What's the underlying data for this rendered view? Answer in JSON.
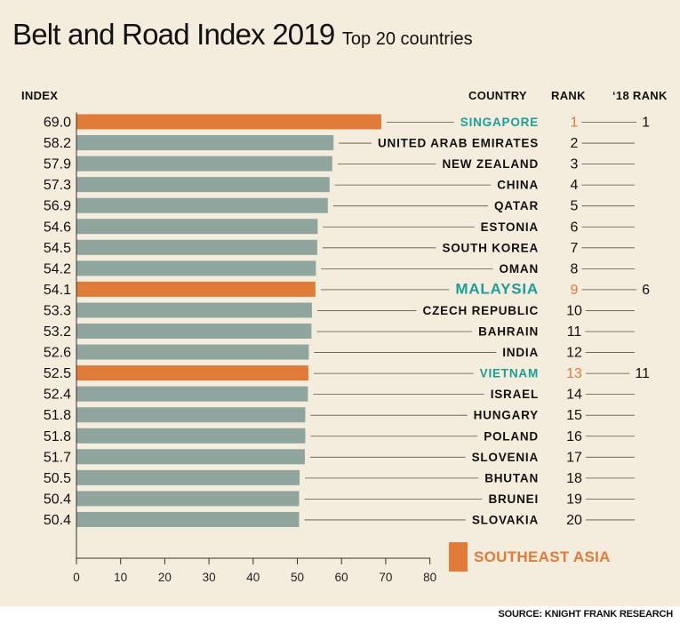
{
  "title": "Belt and Road Index 2019",
  "subtitle": "Top 20 countries",
  "headers": {
    "index": "INDEX",
    "country": "COUNTRY",
    "rank": "RANK",
    "rank18": "‘18 RANK"
  },
  "legend": {
    "label": "SOUTHEAST ASIA",
    "color": "#e07b3a"
  },
  "source": "SOURCE: KNIGHT FRANK RESEARCH",
  "colors": {
    "bar": "#8fa59e",
    "highlight": "#e07b3a",
    "country_highlight": "#1b9d98",
    "background": "#f4ecdc"
  },
  "chart_data": {
    "type": "bar",
    "orientation": "horizontal",
    "xlim": [
      0,
      80
    ],
    "xticks": [
      0,
      10,
      20,
      30,
      40,
      50,
      60,
      70,
      80
    ],
    "rows": [
      {
        "country": "SINGAPORE",
        "index": "69.0",
        "value": 69.0,
        "rank": "1",
        "rank18": "1",
        "southeast_asia": true
      },
      {
        "country": "UNITED ARAB EMIRATES",
        "index": "58.2",
        "value": 58.2,
        "rank": "2",
        "rank18": "",
        "southeast_asia": false
      },
      {
        "country": "NEW ZEALAND",
        "index": "57.9",
        "value": 57.9,
        "rank": "3",
        "rank18": "",
        "southeast_asia": false
      },
      {
        "country": "CHINA",
        "index": "57.3",
        "value": 57.3,
        "rank": "4",
        "rank18": "",
        "southeast_asia": false
      },
      {
        "country": "QATAR",
        "index": "56.9",
        "value": 56.9,
        "rank": "5",
        "rank18": "",
        "southeast_asia": false
      },
      {
        "country": "ESTONIA",
        "index": "54.6",
        "value": 54.6,
        "rank": "6",
        "rank18": "",
        "southeast_asia": false
      },
      {
        "country": "SOUTH KOREA",
        "index": "54.5",
        "value": 54.5,
        "rank": "7",
        "rank18": "",
        "southeast_asia": false
      },
      {
        "country": "OMAN",
        "index": "54.2",
        "value": 54.2,
        "rank": "8",
        "rank18": "",
        "southeast_asia": false
      },
      {
        "country": "MALAYSIA",
        "index": "54.1",
        "value": 54.1,
        "rank": "9",
        "rank18": "6",
        "southeast_asia": true
      },
      {
        "country": "CZECH REPUBLIC",
        "index": "53.3",
        "value": 53.3,
        "rank": "10",
        "rank18": "",
        "southeast_asia": false
      },
      {
        "country": "BAHRAIN",
        "index": "53.2",
        "value": 53.2,
        "rank": "11",
        "rank18": "",
        "southeast_asia": false
      },
      {
        "country": "INDIA",
        "index": "52.6",
        "value": 52.6,
        "rank": "12",
        "rank18": "",
        "southeast_asia": false
      },
      {
        "country": "VIETNAM",
        "index": "52.5",
        "value": 52.5,
        "rank": "13",
        "rank18": "11",
        "southeast_asia": true
      },
      {
        "country": "ISRAEL",
        "index": "52.4",
        "value": 52.4,
        "rank": "14",
        "rank18": "",
        "southeast_asia": false
      },
      {
        "country": "HUNGARY",
        "index": "51.8",
        "value": 51.8,
        "rank": "15",
        "rank18": "",
        "southeast_asia": false
      },
      {
        "country": "POLAND",
        "index": "51.8",
        "value": 51.8,
        "rank": "16",
        "rank18": "",
        "southeast_asia": false
      },
      {
        "country": "SLOVENIA",
        "index": "51.7",
        "value": 51.7,
        "rank": "17",
        "rank18": "",
        "southeast_asia": false
      },
      {
        "country": "BHUTAN",
        "index": "50.5",
        "value": 50.5,
        "rank": "18",
        "rank18": "",
        "southeast_asia": false
      },
      {
        "country": "BRUNEI",
        "index": "50.4",
        "value": 50.4,
        "rank": "19",
        "rank18": "",
        "southeast_asia": false
      },
      {
        "country": "SLOVAKIA",
        "index": "50.4",
        "value": 50.4,
        "rank": "20",
        "rank18": "",
        "southeast_asia": false
      }
    ]
  }
}
